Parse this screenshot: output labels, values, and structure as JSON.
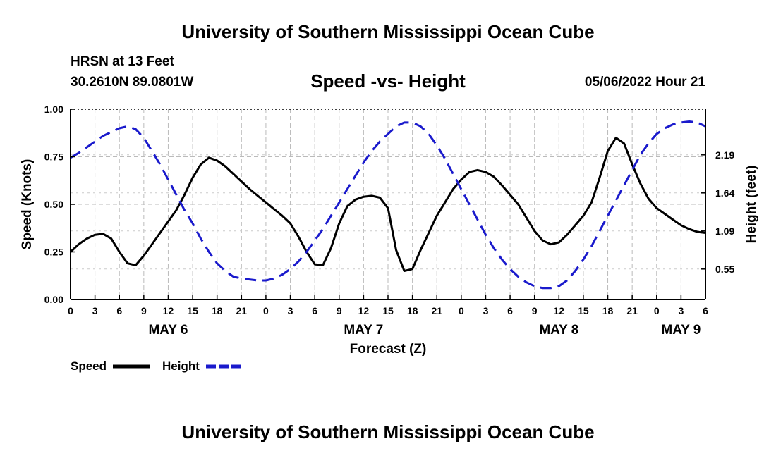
{
  "header": {
    "org_title": "University of Southern Mississippi Ocean Cube",
    "station": "HRSN at 13 Feet",
    "coordinates": "30.2610N  89.0801W",
    "issued": "05/06/2022 Hour 21",
    "footer_title": "University of Southern Mississippi Ocean Cube"
  },
  "chart_data": {
    "type": "line",
    "title": "Speed -vs- Height",
    "xlabel": "Forecast (Z)",
    "ylabel": "Speed (Knots)",
    "y2label": "Height (feet)",
    "xlim": [
      0,
      78
    ],
    "ylim": [
      0,
      1
    ],
    "y2_ticks": [
      "0.55",
      "1.09",
      "1.64",
      "2.19"
    ],
    "y2_tick_positions": [
      0.16,
      0.36,
      0.56,
      0.76
    ],
    "x_ticks": [
      0,
      3,
      6,
      9,
      12,
      15,
      18,
      21,
      24,
      27,
      30,
      33,
      36,
      39,
      42,
      45,
      48,
      51,
      54,
      57,
      60,
      63,
      66,
      69,
      72,
      75,
      78
    ],
    "x_tick_labels": [
      "0",
      "3",
      "6",
      "9",
      "12",
      "15",
      "18",
      "21",
      "0",
      "3",
      "6",
      "9",
      "12",
      "15",
      "18",
      "21",
      "0",
      "3",
      "6",
      "9",
      "12",
      "15",
      "18",
      "21",
      "0",
      "3",
      "6"
    ],
    "y_ticks": [
      0,
      0.25,
      0.5,
      0.75,
      1.0
    ],
    "y_tick_labels": [
      "0.00",
      "0.25",
      "0.50",
      "0.75",
      "1.00"
    ],
    "day_labels": [
      {
        "label": "MAY 6",
        "x": 12
      },
      {
        "label": "MAY 7",
        "x": 36
      },
      {
        "label": "MAY 8",
        "x": 60
      },
      {
        "label": "MAY 9",
        "x": 75
      }
    ],
    "series": [
      {
        "name": "Speed",
        "color": "#000000",
        "dash": "solid",
        "x": [
          0,
          1,
          2,
          3,
          4,
          5,
          6,
          7,
          8,
          9,
          10,
          11,
          12,
          13,
          14,
          15,
          16,
          17,
          18,
          19,
          20,
          21,
          22,
          23,
          24,
          25,
          26,
          27,
          28,
          29,
          30,
          31,
          32,
          33,
          34,
          35,
          36,
          37,
          38,
          39,
          40,
          41,
          42,
          43,
          44,
          45,
          46,
          47,
          48,
          49,
          50,
          51,
          52,
          53,
          54,
          55,
          56,
          57,
          58,
          59,
          60,
          61,
          62,
          63,
          64,
          65,
          66,
          67,
          68,
          69,
          70,
          71,
          72,
          73,
          74,
          75,
          76,
          77,
          78
        ],
        "values": [
          0.25,
          0.29,
          0.32,
          0.34,
          0.345,
          0.32,
          0.25,
          0.19,
          0.18,
          0.23,
          0.29,
          0.35,
          0.41,
          0.47,
          0.55,
          0.64,
          0.71,
          0.745,
          0.73,
          0.7,
          0.66,
          0.62,
          0.58,
          0.545,
          0.51,
          0.475,
          0.44,
          0.4,
          0.33,
          0.25,
          0.185,
          0.18,
          0.27,
          0.4,
          0.49,
          0.525,
          0.54,
          0.545,
          0.535,
          0.48,
          0.26,
          0.15,
          0.16,
          0.26,
          0.35,
          0.44,
          0.51,
          0.58,
          0.63,
          0.67,
          0.68,
          0.67,
          0.645,
          0.6,
          0.55,
          0.5,
          0.43,
          0.36,
          0.31,
          0.29,
          0.3,
          0.34,
          0.39,
          0.44,
          0.51,
          0.64,
          0.78,
          0.85,
          0.82,
          0.71,
          0.61,
          0.53,
          0.48,
          0.45,
          0.42,
          0.39,
          0.37,
          0.355,
          0.35
        ]
      },
      {
        "name": "Height",
        "color": "#1a1acc",
        "dash": "dashed",
        "x": [
          0,
          1,
          2,
          3,
          4,
          5,
          6,
          7,
          8,
          9,
          10,
          11,
          12,
          13,
          14,
          15,
          16,
          17,
          18,
          19,
          20,
          21,
          22,
          23,
          24,
          25,
          26,
          27,
          28,
          29,
          30,
          31,
          32,
          33,
          34,
          35,
          36,
          37,
          38,
          39,
          40,
          41,
          42,
          43,
          44,
          45,
          46,
          47,
          48,
          49,
          50,
          51,
          52,
          53,
          54,
          55,
          56,
          57,
          58,
          59,
          60,
          61,
          62,
          63,
          64,
          65,
          66,
          67,
          68,
          69,
          70,
          71,
          72,
          73,
          74,
          75,
          76,
          77,
          78
        ],
        "values": [
          0.745,
          0.77,
          0.8,
          0.83,
          0.86,
          0.88,
          0.9,
          0.91,
          0.895,
          0.85,
          0.78,
          0.71,
          0.63,
          0.55,
          0.47,
          0.4,
          0.32,
          0.25,
          0.19,
          0.15,
          0.12,
          0.11,
          0.105,
          0.1,
          0.1,
          0.11,
          0.13,
          0.16,
          0.2,
          0.25,
          0.31,
          0.37,
          0.44,
          0.51,
          0.58,
          0.65,
          0.72,
          0.78,
          0.83,
          0.87,
          0.91,
          0.93,
          0.93,
          0.91,
          0.87,
          0.81,
          0.74,
          0.66,
          0.58,
          0.5,
          0.42,
          0.34,
          0.27,
          0.21,
          0.16,
          0.12,
          0.09,
          0.07,
          0.06,
          0.06,
          0.07,
          0.1,
          0.15,
          0.21,
          0.28,
          0.36,
          0.44,
          0.52,
          0.6,
          0.68,
          0.76,
          0.82,
          0.87,
          0.9,
          0.92,
          0.93,
          0.935,
          0.93,
          0.91
        ]
      }
    ],
    "legend": [
      {
        "label": "Speed",
        "color": "#000000",
        "dash": "solid"
      },
      {
        "label": "Height",
        "color": "#1a1acc",
        "dash": "dashed"
      }
    ],
    "grid": true
  }
}
